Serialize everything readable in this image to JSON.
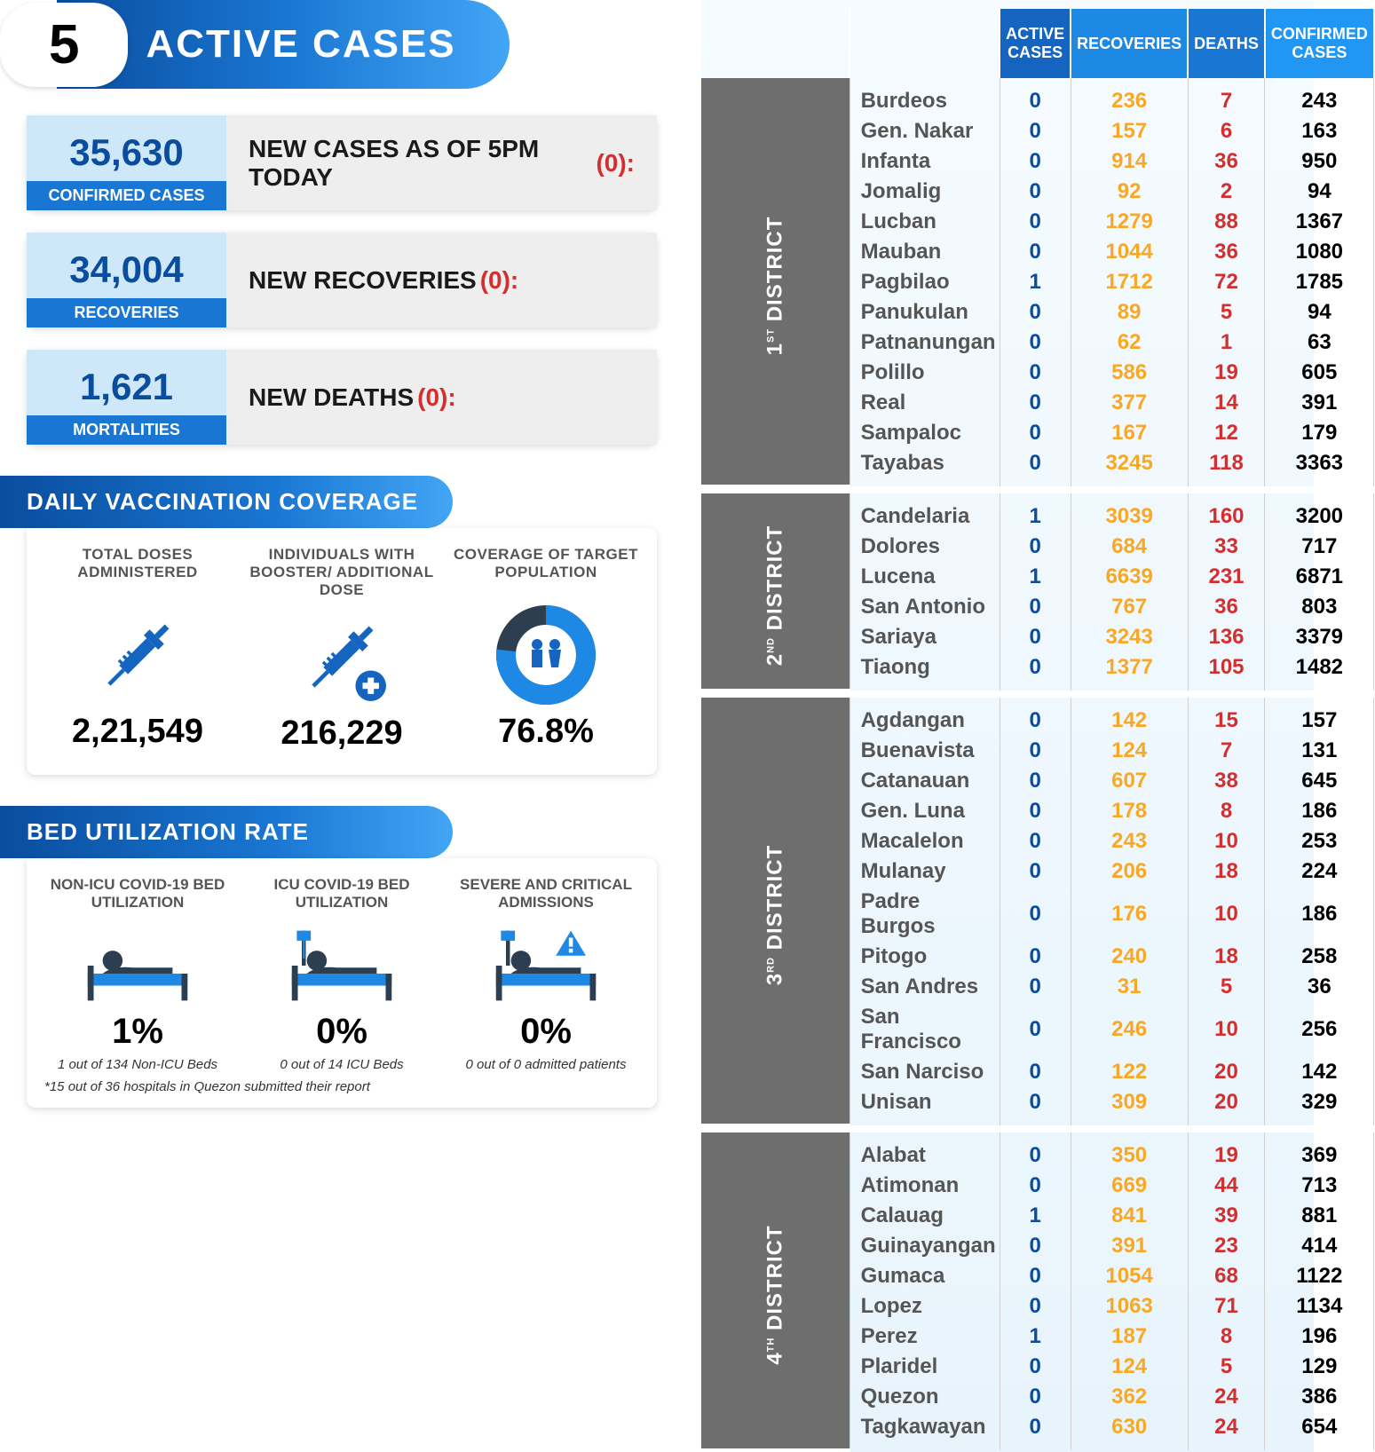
{
  "header": {
    "number": "5",
    "label": "ACTIVE CASES"
  },
  "stats": [
    {
      "value": "35,630",
      "label": "CONFIRMED CASES",
      "right_label": "NEW CASES AS OF 5PM TODAY",
      "right_red": "(0):"
    },
    {
      "value": "34,004",
      "label": "RECOVERIES",
      "right_label": "NEW RECOVERIES",
      "right_red": "(0):"
    },
    {
      "value": "1,621",
      "label": "MORTALITIES",
      "right_label": "NEW DEATHS",
      "right_red": "(0):"
    }
  ],
  "vaccination": {
    "title": "DAILY VACCINATION COVERAGE",
    "items": [
      {
        "title": "TOTAL DOSES ADMINISTERED",
        "value": "2,21,549",
        "icon": "syringe"
      },
      {
        "title": "INDIVIDUALS WITH BOOSTER/ ADDITIONAL DOSE",
        "value": "216,229",
        "icon": "syringe-plus"
      },
      {
        "title": "COVERAGE OF TARGET POPULATION",
        "value": "76.8%",
        "icon": "donut",
        "donut_pct": 76.8
      }
    ]
  },
  "bed": {
    "title": "BED UTILIZATION RATE",
    "items": [
      {
        "title": "NON-ICU COVID-19 BED UTILIZATION",
        "value": "1%",
        "sub": "1 out of 134 Non-ICU Beds",
        "icon": "bed"
      },
      {
        "title": "ICU COVID-19 BED UTILIZATION",
        "value": "0%",
        "sub": "0 out of 14 ICU Beds",
        "icon": "bed-iv"
      },
      {
        "title": "SEVERE AND CRITICAL ADMISSIONS",
        "value": "0%",
        "sub": "0 out of 0 admitted patients",
        "icon": "bed-alert"
      }
    ],
    "footnote": "*15 out of 36 hospitals in Quezon submitted their report"
  },
  "table": {
    "headers": {
      "ac": "ACTIVE CASES",
      "rec": "RECOVERIES",
      "de": "DEATHS",
      "cc": "CONFIRMED CASES"
    },
    "districts": [
      {
        "name": "1ST DISTRICT",
        "sup": "ST",
        "rows": [
          {
            "n": "Burdeos",
            "a": "0",
            "r": "236",
            "d": "7",
            "c": "243"
          },
          {
            "n": "Gen. Nakar",
            "a": "0",
            "r": "157",
            "d": "6",
            "c": "163"
          },
          {
            "n": "Infanta",
            "a": "0",
            "r": "914",
            "d": "36",
            "c": "950"
          },
          {
            "n": "Jomalig",
            "a": "0",
            "r": "92",
            "d": "2",
            "c": "94"
          },
          {
            "n": "Lucban",
            "a": "0",
            "r": "1279",
            "d": "88",
            "c": "1367"
          },
          {
            "n": "Mauban",
            "a": "0",
            "r": "1044",
            "d": "36",
            "c": "1080"
          },
          {
            "n": "Pagbilao",
            "a": "1",
            "r": "1712",
            "d": "72",
            "c": "1785"
          },
          {
            "n": "Panukulan",
            "a": "0",
            "r": "89",
            "d": "5",
            "c": "94"
          },
          {
            "n": "Patnanungan",
            "a": "0",
            "r": "62",
            "d": "1",
            "c": "63"
          },
          {
            "n": "Polillo",
            "a": "0",
            "r": "586",
            "d": "19",
            "c": "605"
          },
          {
            "n": "Real",
            "a": "0",
            "r": "377",
            "d": "14",
            "c": "391"
          },
          {
            "n": "Sampaloc",
            "a": "0",
            "r": "167",
            "d": "12",
            "c": "179"
          },
          {
            "n": "Tayabas",
            "a": "0",
            "r": "3245",
            "d": "118",
            "c": "3363"
          }
        ]
      },
      {
        "name": "2ND DISTRICT",
        "sup": "ND",
        "rows": [
          {
            "n": "Candelaria",
            "a": "1",
            "r": "3039",
            "d": "160",
            "c": "3200"
          },
          {
            "n": "Dolores",
            "a": "0",
            "r": "684",
            "d": "33",
            "c": "717"
          },
          {
            "n": "Lucena",
            "a": "1",
            "r": "6639",
            "d": "231",
            "c": "6871"
          },
          {
            "n": "San Antonio",
            "a": "0",
            "r": "767",
            "d": "36",
            "c": "803"
          },
          {
            "n": "Sariaya",
            "a": "0",
            "r": "3243",
            "d": "136",
            "c": "3379"
          },
          {
            "n": "Tiaong",
            "a": "0",
            "r": "1377",
            "d": "105",
            "c": "1482"
          }
        ]
      },
      {
        "name": "3RD DISTRICT",
        "sup": "RD",
        "rows": [
          {
            "n": "Agdangan",
            "a": "0",
            "r": "142",
            "d": "15",
            "c": "157"
          },
          {
            "n": "Buenavista",
            "a": "0",
            "r": "124",
            "d": "7",
            "c": "131"
          },
          {
            "n": "Catanauan",
            "a": "0",
            "r": "607",
            "d": "38",
            "c": "645"
          },
          {
            "n": "Gen. Luna",
            "a": "0",
            "r": "178",
            "d": "8",
            "c": "186"
          },
          {
            "n": "Macalelon",
            "a": "0",
            "r": "243",
            "d": "10",
            "c": "253"
          },
          {
            "n": "Mulanay",
            "a": "0",
            "r": "206",
            "d": "18",
            "c": "224"
          },
          {
            "n": "Padre Burgos",
            "a": "0",
            "r": "176",
            "d": "10",
            "c": "186"
          },
          {
            "n": "Pitogo",
            "a": "0",
            "r": "240",
            "d": "18",
            "c": "258"
          },
          {
            "n": "San Andres",
            "a": "0",
            "r": "31",
            "d": "5",
            "c": "36"
          },
          {
            "n": "San Francisco",
            "a": "0",
            "r": "246",
            "d": "10",
            "c": "256"
          },
          {
            "n": "San Narciso",
            "a": "0",
            "r": "122",
            "d": "20",
            "c": "142"
          },
          {
            "n": "Unisan",
            "a": "0",
            "r": "309",
            "d": "20",
            "c": "329"
          }
        ]
      },
      {
        "name": "4TH DISTRICT",
        "sup": "TH",
        "rows": [
          {
            "n": "Alabat",
            "a": "0",
            "r": "350",
            "d": "19",
            "c": "369"
          },
          {
            "n": "Atimonan",
            "a": "0",
            "r": "669",
            "d": "44",
            "c": "713"
          },
          {
            "n": "Calauag",
            "a": "1",
            "r": "841",
            "d": "39",
            "c": "881"
          },
          {
            "n": "Guinayangan",
            "a": "0",
            "r": "391",
            "d": "23",
            "c": "414"
          },
          {
            "n": "Gumaca",
            "a": "0",
            "r": "1054",
            "d": "68",
            "c": "1122"
          },
          {
            "n": "Lopez",
            "a": "0",
            "r": "1063",
            "d": "71",
            "c": "1134"
          },
          {
            "n": "Perez",
            "a": "1",
            "r": "187",
            "d": "8",
            "c": "196"
          },
          {
            "n": "Plaridel",
            "a": "0",
            "r": "124",
            "d": "5",
            "c": "129"
          },
          {
            "n": "Quezon",
            "a": "0",
            "r": "362",
            "d": "24",
            "c": "386"
          },
          {
            "n": "Tagkawayan",
            "a": "0",
            "r": "630",
            "d": "24",
            "c": "654"
          }
        ]
      }
    ]
  },
  "colors": {
    "blue_dark": "#0a4d9e",
    "blue_mid": "#1976d2",
    "blue_light": "#42a5f5",
    "red": "#d32f2f",
    "orange": "#f9a825",
    "gray_dark": "#6e6e6e"
  }
}
